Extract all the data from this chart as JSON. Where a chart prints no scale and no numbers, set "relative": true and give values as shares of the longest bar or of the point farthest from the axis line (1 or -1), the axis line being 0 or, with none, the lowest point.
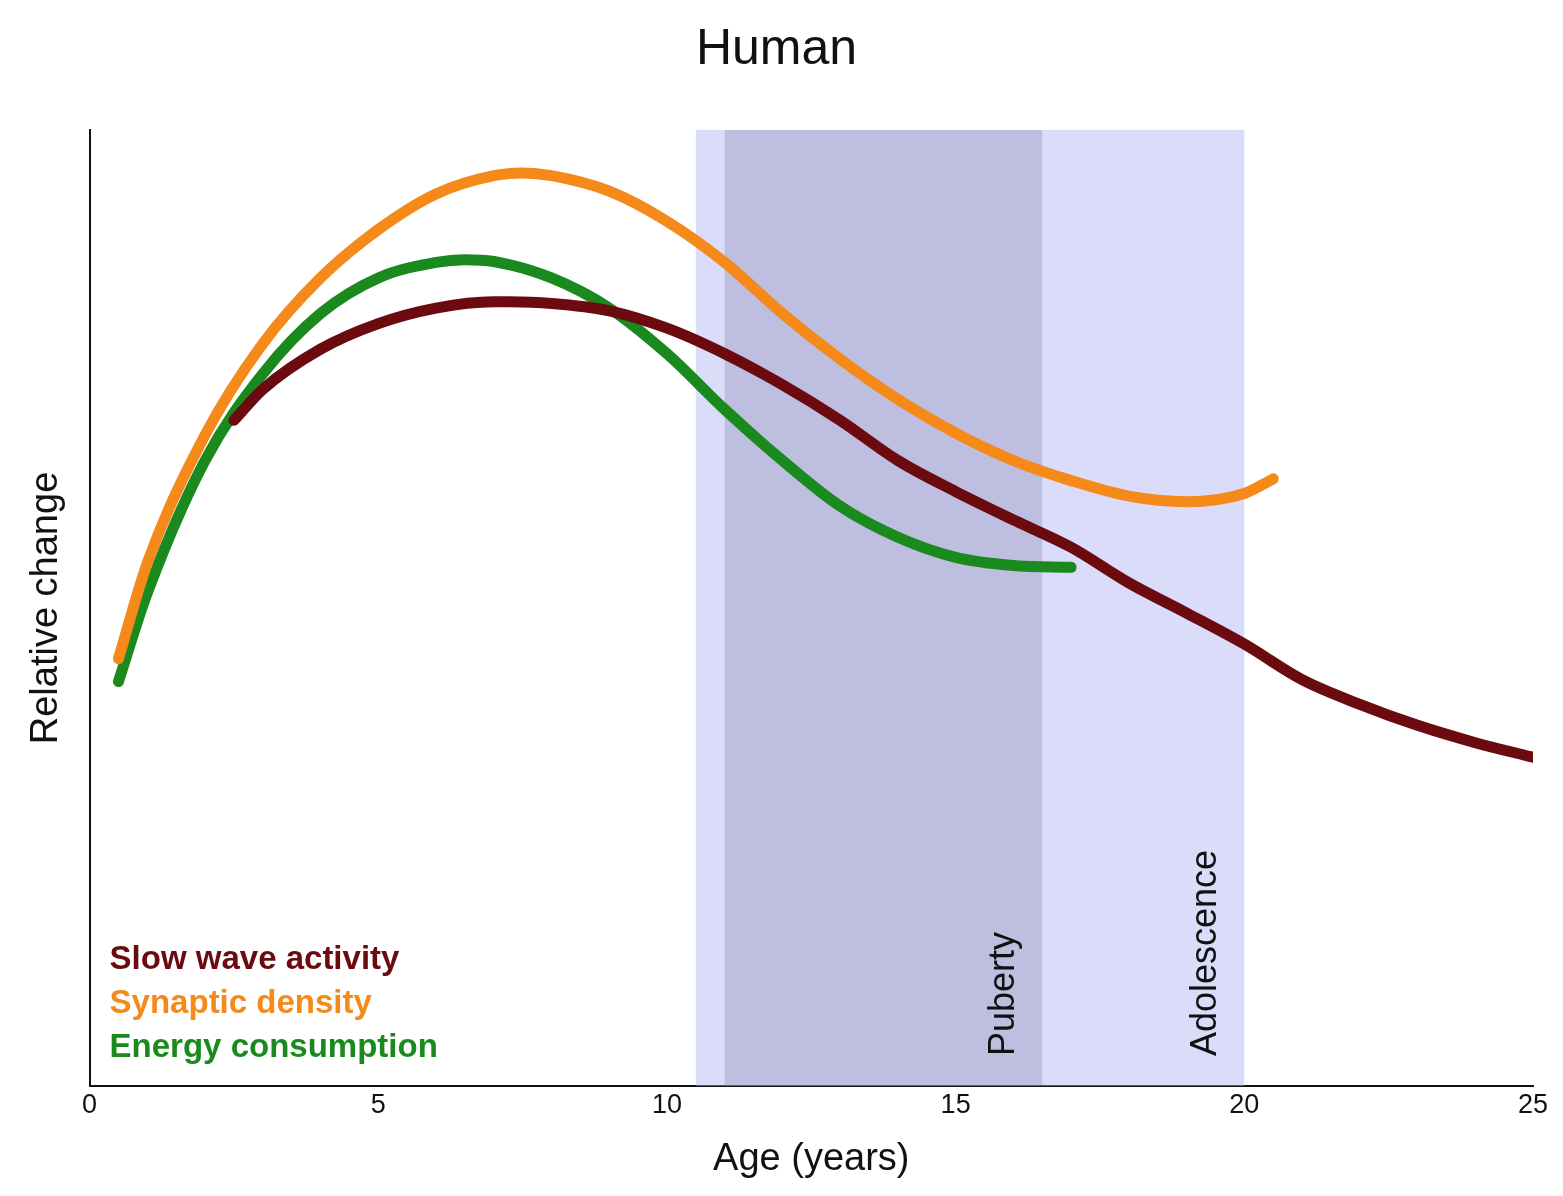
{
  "chart_data": {
    "type": "line",
    "title": "Human",
    "xlabel": "Age (years)",
    "ylabel": "Relative change",
    "relative": true,
    "xlim": [
      0,
      25
    ],
    "xticks": [
      0,
      5,
      10,
      15,
      20,
      25
    ],
    "grid": false,
    "legend": "bottom left",
    "marker": "none",
    "line_style": "solid",
    "series": [
      {
        "name": "Slow wave activity",
        "color": "#6b0a0f",
        "x": [
          2.5,
          3,
          4,
          5,
          6,
          7,
          8,
          9,
          10,
          11,
          12,
          13,
          14,
          15,
          16,
          17,
          18,
          19,
          20,
          21,
          22,
          23,
          24,
          25
        ],
        "values": [
          0.729,
          0.763,
          0.807,
          0.835,
          0.852,
          0.859,
          0.857,
          0.849,
          0.83,
          0.802,
          0.768,
          0.729,
          0.685,
          0.651,
          0.62,
          0.59,
          0.551,
          0.518,
          0.484,
          0.445,
          0.418,
          0.395,
          0.376,
          0.36
        ]
      },
      {
        "name": "Synaptic density",
        "color": "#f5891a",
        "x": [
          0.5,
          1,
          2,
          3,
          4,
          5,
          6,
          7,
          7.5,
          8,
          9,
          10,
          11,
          12,
          13,
          14,
          15,
          16,
          17,
          18,
          19,
          20,
          20.5
        ],
        "values": [
          0.468,
          0.573,
          0.713,
          0.813,
          0.885,
          0.938,
          0.977,
          0.997,
          1,
          0.997,
          0.98,
          0.947,
          0.902,
          0.846,
          0.796,
          0.752,
          0.715,
          0.685,
          0.663,
          0.646,
          0.64,
          0.649,
          0.665
        ]
      },
      {
        "name": "Energy consumption",
        "color": "#1a8a1e",
        "x": [
          0.5,
          1,
          2,
          3,
          4,
          5,
          6,
          6.5,
          7,
          8,
          9,
          10,
          11,
          12,
          13,
          14,
          15,
          16,
          17
        ],
        "values": [
          0.443,
          0.54,
          0.685,
          0.78,
          0.846,
          0.885,
          0.902,
          0.905,
          0.903,
          0.885,
          0.852,
          0.802,
          0.741,
          0.685,
          0.635,
          0.601,
          0.579,
          0.57,
          0.568
        ]
      }
    ],
    "bands": [
      {
        "axis": "x",
        "from": 10.5,
        "to": 20,
        "label": "Adolescence",
        "color": "#b0b0f5"
      },
      {
        "axis": "x",
        "from": 11,
        "to": 16.5,
        "label": "Puberty",
        "color": "#7a7aa8"
      }
    ]
  }
}
